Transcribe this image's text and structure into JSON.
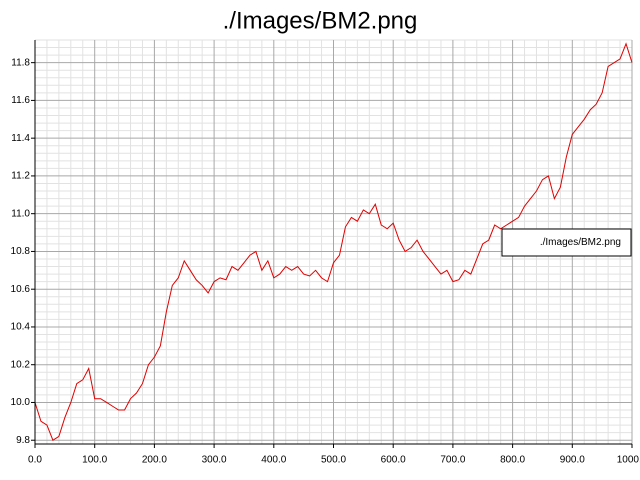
{
  "chart_data": {
    "type": "line",
    "title": "./Images/BM2.png",
    "x": [
      0,
      10,
      20,
      30,
      40,
      50,
      60,
      70,
      80,
      90,
      100,
      110,
      120,
      130,
      140,
      150,
      160,
      170,
      180,
      190,
      200,
      210,
      220,
      230,
      240,
      250,
      260,
      270,
      280,
      290,
      300,
      310,
      320,
      330,
      340,
      350,
      360,
      370,
      380,
      390,
      400,
      410,
      420,
      430,
      440,
      450,
      460,
      470,
      480,
      490,
      500,
      510,
      520,
      530,
      540,
      550,
      560,
      570,
      580,
      590,
      600,
      610,
      620,
      630,
      640,
      650,
      660,
      670,
      680,
      690,
      700,
      710,
      720,
      730,
      740,
      750,
      760,
      770,
      780,
      790,
      800,
      810,
      820,
      830,
      840,
      850,
      860,
      870,
      880,
      890,
      900,
      910,
      920,
      930,
      940,
      950,
      960,
      970,
      980,
      990,
      1000
    ],
    "series": [
      {
        "name": "./Images/BM2.png",
        "color": "#e00000",
        "values": [
          10.0,
          9.9,
          9.88,
          9.8,
          9.82,
          9.92,
          10.0,
          10.1,
          10.12,
          10.18,
          10.02,
          10.02,
          10.0,
          9.98,
          9.96,
          9.96,
          10.02,
          10.05,
          10.1,
          10.2,
          10.24,
          10.3,
          10.48,
          10.62,
          10.66,
          10.75,
          10.7,
          10.65,
          10.62,
          10.58,
          10.64,
          10.66,
          10.65,
          10.72,
          10.7,
          10.74,
          10.78,
          10.8,
          10.7,
          10.75,
          10.66,
          10.68,
          10.72,
          10.7,
          10.72,
          10.68,
          10.67,
          10.7,
          10.66,
          10.64,
          10.74,
          10.78,
          10.93,
          10.98,
          10.96,
          11.02,
          11.0,
          11.05,
          10.94,
          10.92,
          10.95,
          10.86,
          10.8,
          10.82,
          10.86,
          10.8,
          10.76,
          10.72,
          10.68,
          10.7,
          10.64,
          10.65,
          10.7,
          10.68,
          10.76,
          10.84,
          10.86,
          10.94,
          10.92,
          10.94,
          10.96,
          10.98,
          11.04,
          11.08,
          11.12,
          11.18,
          11.2,
          11.08,
          11.14,
          11.3,
          11.42,
          11.46,
          11.5,
          11.55,
          11.58,
          11.64,
          11.78,
          11.8,
          11.82,
          11.9,
          11.8
        ]
      }
    ],
    "xlim": [
      0,
      1000
    ],
    "ylim": [
      9.78,
      11.92
    ],
    "xticks": [
      {
        "value": 0,
        "label": "0.0"
      },
      {
        "value": 100,
        "label": "100.0"
      },
      {
        "value": 200,
        "label": "200.0"
      },
      {
        "value": 300,
        "label": "300.0"
      },
      {
        "value": 400,
        "label": "400.0"
      },
      {
        "value": 500,
        "label": "500.0"
      },
      {
        "value": 600,
        "label": "600.0"
      },
      {
        "value": 700,
        "label": "700.0"
      },
      {
        "value": 800,
        "label": "800.0"
      },
      {
        "value": 900,
        "label": "900.0"
      },
      {
        "value": 1000,
        "label": "1000.0"
      }
    ],
    "yticks": [
      9.8,
      {
        "value": 10,
        "label": "10.0"
      },
      10.2,
      10.4,
      10.6,
      10.8,
      {
        "value": 11,
        "label": "11.0"
      },
      11.2,
      11.4,
      11.6,
      11.8
    ],
    "grid": true,
    "minor_grid_divisions": 5,
    "legend": "right"
  }
}
